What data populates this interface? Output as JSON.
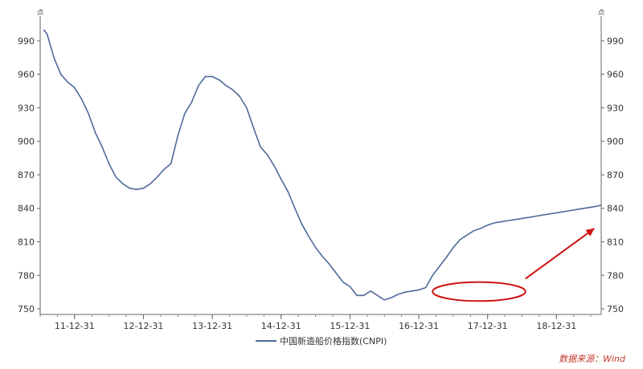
{
  "chart_data": {
    "type": "line",
    "title": "",
    "xlabel": "",
    "ylabel": "",
    "y_unit_label": "点",
    "ylim": [
      745,
      1005
    ],
    "y_ticks": [
      750,
      780,
      810,
      840,
      870,
      900,
      930,
      960,
      990
    ],
    "x_ticks": [
      "11-12-31",
      "12-12-31",
      "13-12-31",
      "14-12-31",
      "15-12-31",
      "16-12-31",
      "17-12-31",
      "18-12-31"
    ],
    "x_tick_positions_years": [
      2011.0,
      2012.0,
      2013.0,
      2014.0,
      2015.0,
      2016.0,
      2017.0,
      2018.0
    ],
    "xlim": [
      2010.5,
      2018.65
    ],
    "grid": false,
    "legend_position": "bottom-center",
    "series": [
      {
        "name": "中国新造船价格指数(CNPI)",
        "color": "#4f6a9a",
        "x": [
          2010.55,
          2010.6,
          2010.7,
          2010.8,
          2010.9,
          2011.0,
          2011.1,
          2011.2,
          2011.3,
          2011.4,
          2011.5,
          2011.6,
          2011.7,
          2011.8,
          2011.9,
          2012.0,
          2012.1,
          2012.2,
          2012.3,
          2012.4,
          2012.5,
          2012.6,
          2012.7,
          2012.8,
          2012.9,
          2013.0,
          2013.1,
          2013.2,
          2013.3,
          2013.4,
          2013.5,
          2013.6,
          2013.7,
          2013.8,
          2013.9,
          2014.0,
          2014.1,
          2014.2,
          2014.3,
          2014.4,
          2014.5,
          2014.6,
          2014.7,
          2014.8,
          2014.9,
          2015.0,
          2015.1,
          2015.2,
          2015.3,
          2015.4,
          2015.5,
          2015.6,
          2015.7,
          2015.8,
          2015.9,
          2016.0,
          2016.1,
          2016.2,
          2016.3,
          2016.4,
          2016.5,
          2016.6,
          2016.7,
          2016.8,
          2016.9,
          2017.0,
          2017.1,
          2017.2,
          2017.3,
          2017.4,
          2017.5,
          2017.6,
          2017.7,
          2017.8,
          2017.9,
          2018.0,
          2018.1,
          2018.2,
          2018.3,
          2018.4,
          2018.5,
          2018.6,
          2018.65
        ],
        "values": [
          1000,
          996,
          975,
          960,
          953,
          948,
          938,
          925,
          908,
          895,
          880,
          868,
          862,
          858,
          857,
          858,
          862,
          868,
          875,
          880,
          905,
          925,
          935,
          950,
          958,
          958,
          955,
          950,
          946,
          940,
          930,
          912,
          895,
          888,
          878,
          866,
          855,
          840,
          826,
          815,
          805,
          797,
          790,
          782,
          774,
          770,
          762,
          762,
          766,
          762,
          758,
          760,
          763,
          765,
          766,
          767,
          769,
          780,
          788,
          796,
          805,
          812,
          816,
          820,
          822,
          825,
          827,
          828,
          829,
          830,
          831,
          832,
          833,
          834,
          835,
          836,
          837,
          838,
          839,
          840,
          841,
          842,
          843
        ]
      }
    ],
    "annotations": {
      "highlight_ellipse": {
        "x_from": 2016.2,
        "x_to": 2017.55,
        "y_from": 757,
        "y_to": 774,
        "color": "#cc1111"
      },
      "trend_arrow": {
        "x_from": 2017.55,
        "y_from": 777,
        "x_to": 2018.55,
        "y_to": 822,
        "color": "#cc1111"
      }
    }
  },
  "source": "数据来源：Wind"
}
